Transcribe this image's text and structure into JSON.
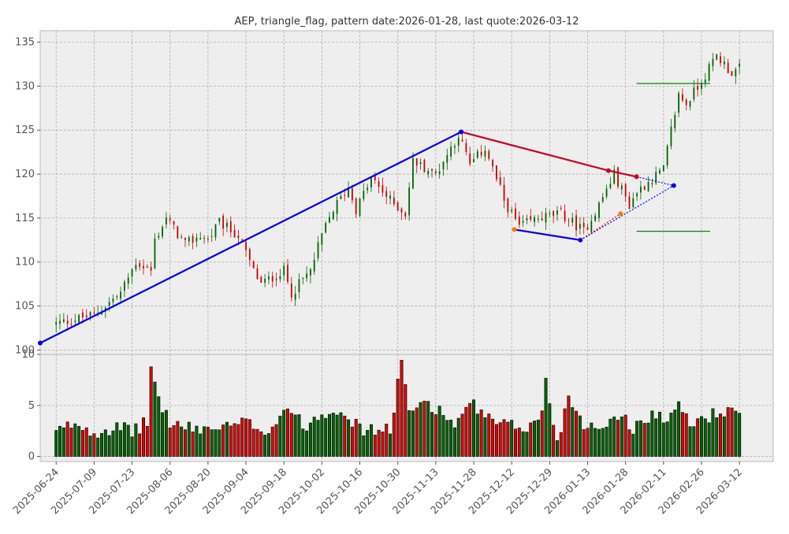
{
  "chart_data": {
    "type": "candlestick",
    "title": "AEP, triangle_flag, pattern date:2026-01-28, last quote:2026-03-12",
    "price_panel": {
      "ylim": [
        99.5,
        136.3
      ],
      "yticks": [
        100,
        105,
        110,
        115,
        120,
        125,
        130,
        135
      ],
      "grid": true
    },
    "volume_panel": {
      "ylim": [
        -0.5,
        10.0
      ],
      "yticks": [
        0,
        5,
        10
      ],
      "grid": true
    },
    "x_tick_labels": [
      "2025-06-24",
      "2025-07-09",
      "2025-07-23",
      "2025-08-06",
      "2025-08-20",
      "2025-09-04",
      "2025-09-18",
      "2025-10-02",
      "2025-10-16",
      "2025-10-30",
      "2025-11-13",
      "2025-11-28",
      "2025-12-12",
      "2025-12-29",
      "2026-01-13",
      "2026-01-28",
      "2026-02-11",
      "2026-02-26",
      "2026-03-12"
    ],
    "x_tick_index": [
      0,
      10,
      20,
      30,
      40,
      50,
      60,
      70,
      80,
      90,
      100,
      110,
      120,
      130,
      140,
      150,
      160,
      170,
      180
    ],
    "x_range": [
      -4.2,
      188.9
    ],
    "bar_count": 181,
    "close_anchors": [
      [
        0,
        103.0
      ],
      [
        10,
        104.0
      ],
      [
        17,
        106.5
      ],
      [
        21,
        110.0
      ],
      [
        25,
        109.0
      ],
      [
        26,
        112.5
      ],
      [
        29,
        115.0
      ],
      [
        34,
        112.0
      ],
      [
        38,
        113.0
      ],
      [
        40,
        112.5
      ],
      [
        43,
        114.5
      ],
      [
        48,
        113.0
      ],
      [
        52,
        109.0
      ],
      [
        54,
        107.5
      ],
      [
        60,
        109.0
      ],
      [
        62,
        106.5
      ],
      [
        67,
        109.0
      ],
      [
        70,
        113.0
      ],
      [
        73,
        116.0
      ],
      [
        77,
        118.5
      ],
      [
        79,
        116.0
      ],
      [
        83,
        119.5
      ],
      [
        88,
        117.0
      ],
      [
        92,
        115.5
      ],
      [
        94,
        121.5
      ],
      [
        100,
        120.0
      ],
      [
        106,
        124.5
      ],
      [
        109,
        121.0
      ],
      [
        113,
        123.0
      ],
      [
        118,
        117.0
      ],
      [
        122,
        114.0
      ],
      [
        127,
        115.0
      ],
      [
        133,
        115.5
      ],
      [
        139,
        113.5
      ],
      [
        143,
        116.5
      ],
      [
        147,
        120.0
      ],
      [
        151,
        116.5
      ],
      [
        153,
        118.0
      ],
      [
        157,
        119.5
      ],
      [
        160,
        120.5
      ],
      [
        162,
        125.0
      ],
      [
        164,
        129.0
      ],
      [
        166,
        128.0
      ],
      [
        169,
        130.0
      ],
      [
        172,
        132.0
      ],
      [
        174,
        133.5
      ],
      [
        178,
        131.5
      ],
      [
        180,
        132.0
      ]
    ],
    "volume_anchors": [
      [
        0,
        2.3
      ],
      [
        5,
        3.3
      ],
      [
        10,
        2.4
      ],
      [
        15,
        2.8
      ],
      [
        20,
        2.5
      ],
      [
        24,
        3.3
      ],
      [
        25,
        8.8
      ],
      [
        27,
        5.6
      ],
      [
        30,
        3.3
      ],
      [
        35,
        2.7
      ],
      [
        45,
        2.8
      ],
      [
        50,
        3.3
      ],
      [
        56,
        2.5
      ],
      [
        61,
        5.0
      ],
      [
        65,
        2.9
      ],
      [
        70,
        4.2
      ],
      [
        75,
        4.8
      ],
      [
        80,
        2.6
      ],
      [
        85,
        2.6
      ],
      [
        88,
        2.5
      ],
      [
        91,
        9.6
      ],
      [
        93,
        3.9
      ],
      [
        97,
        5.6
      ],
      [
        105,
        3.2
      ],
      [
        110,
        5.0
      ],
      [
        115,
        3.2
      ],
      [
        120,
        2.9
      ],
      [
        125,
        2.9
      ],
      [
        128,
        4.2
      ],
      [
        129,
        7.3
      ],
      [
        132,
        1.5
      ],
      [
        135,
        5.8
      ],
      [
        140,
        2.7
      ],
      [
        145,
        3.2
      ],
      [
        149,
        4.5
      ],
      [
        151,
        2.5
      ],
      [
        155,
        3.8
      ],
      [
        158,
        4.3
      ],
      [
        161,
        3.2
      ],
      [
        163,
        5.2
      ],
      [
        167,
        3.2
      ],
      [
        175,
        4.4
      ],
      [
        178,
        4.2
      ],
      [
        180,
        3.9
      ]
    ],
    "series": [
      {
        "color": "#0000ee",
        "style": "solid",
        "points": [
          [
            -4.2,
            100.8
          ],
          [
            106.7,
            124.8
          ]
        ]
      },
      {
        "color": "#cc0022",
        "style": "solid",
        "points": [
          [
            106.7,
            124.8
          ],
          [
            145.5,
            120.4
          ],
          [
            152.9,
            119.7
          ]
        ]
      },
      {
        "color": "#ff7700",
        "style": "solid",
        "points": [
          [
            120.7,
            113.7
          ],
          [
            138.1,
            112.5
          ]
        ]
      },
      {
        "color": "#0000ee",
        "style": "solid",
        "points": [
          [
            120.7,
            113.7
          ],
          [
            138.1,
            112.5
          ]
        ]
      },
      {
        "color": "#ff0000",
        "style": "dotted",
        "points": [
          [
            138.1,
            112.5
          ],
          [
            148.7,
            115.5
          ]
        ]
      },
      {
        "color": "#0000ee",
        "style": "dotted",
        "points": [
          [
            152.9,
            119.7
          ],
          [
            162.7,
            118.7
          ]
        ]
      },
      {
        "color": "#0000ee",
        "style": "dotted",
        "points": [
          [
            138.1,
            112.5
          ],
          [
            162.7,
            118.7
          ]
        ]
      }
    ],
    "markers": [
      {
        "color": "#0000ee",
        "x": -4.2,
        "y": 100.8
      },
      {
        "color": "#0000ee",
        "x": 106.7,
        "y": 124.8
      },
      {
        "color": "#cc0022",
        "x": 145.5,
        "y": 120.4
      },
      {
        "color": "#cc0022",
        "x": 152.9,
        "y": 119.7
      },
      {
        "color": "#ff7700",
        "x": 120.7,
        "y": 113.7
      },
      {
        "color": "#0000ee",
        "x": 138.1,
        "y": 112.5
      },
      {
        "color": "#ff7700",
        "x": 148.7,
        "y": 115.5
      },
      {
        "color": "#0000ee",
        "x": 162.7,
        "y": 118.7
      }
    ],
    "target_lines": [
      {
        "color": "#008800",
        "y": 130.3,
        "x_start": 152.9,
        "x_end": 172.3
      },
      {
        "color": "#008800",
        "y": 113.5,
        "x_start": 152.9,
        "x_end": 172.3
      }
    ],
    "colors": {
      "up": "#006400",
      "down": "#cc0000",
      "panel_bg": "#eeeeee",
      "grid": "#b0b0b0",
      "frame": "#bbbbbb"
    }
  }
}
